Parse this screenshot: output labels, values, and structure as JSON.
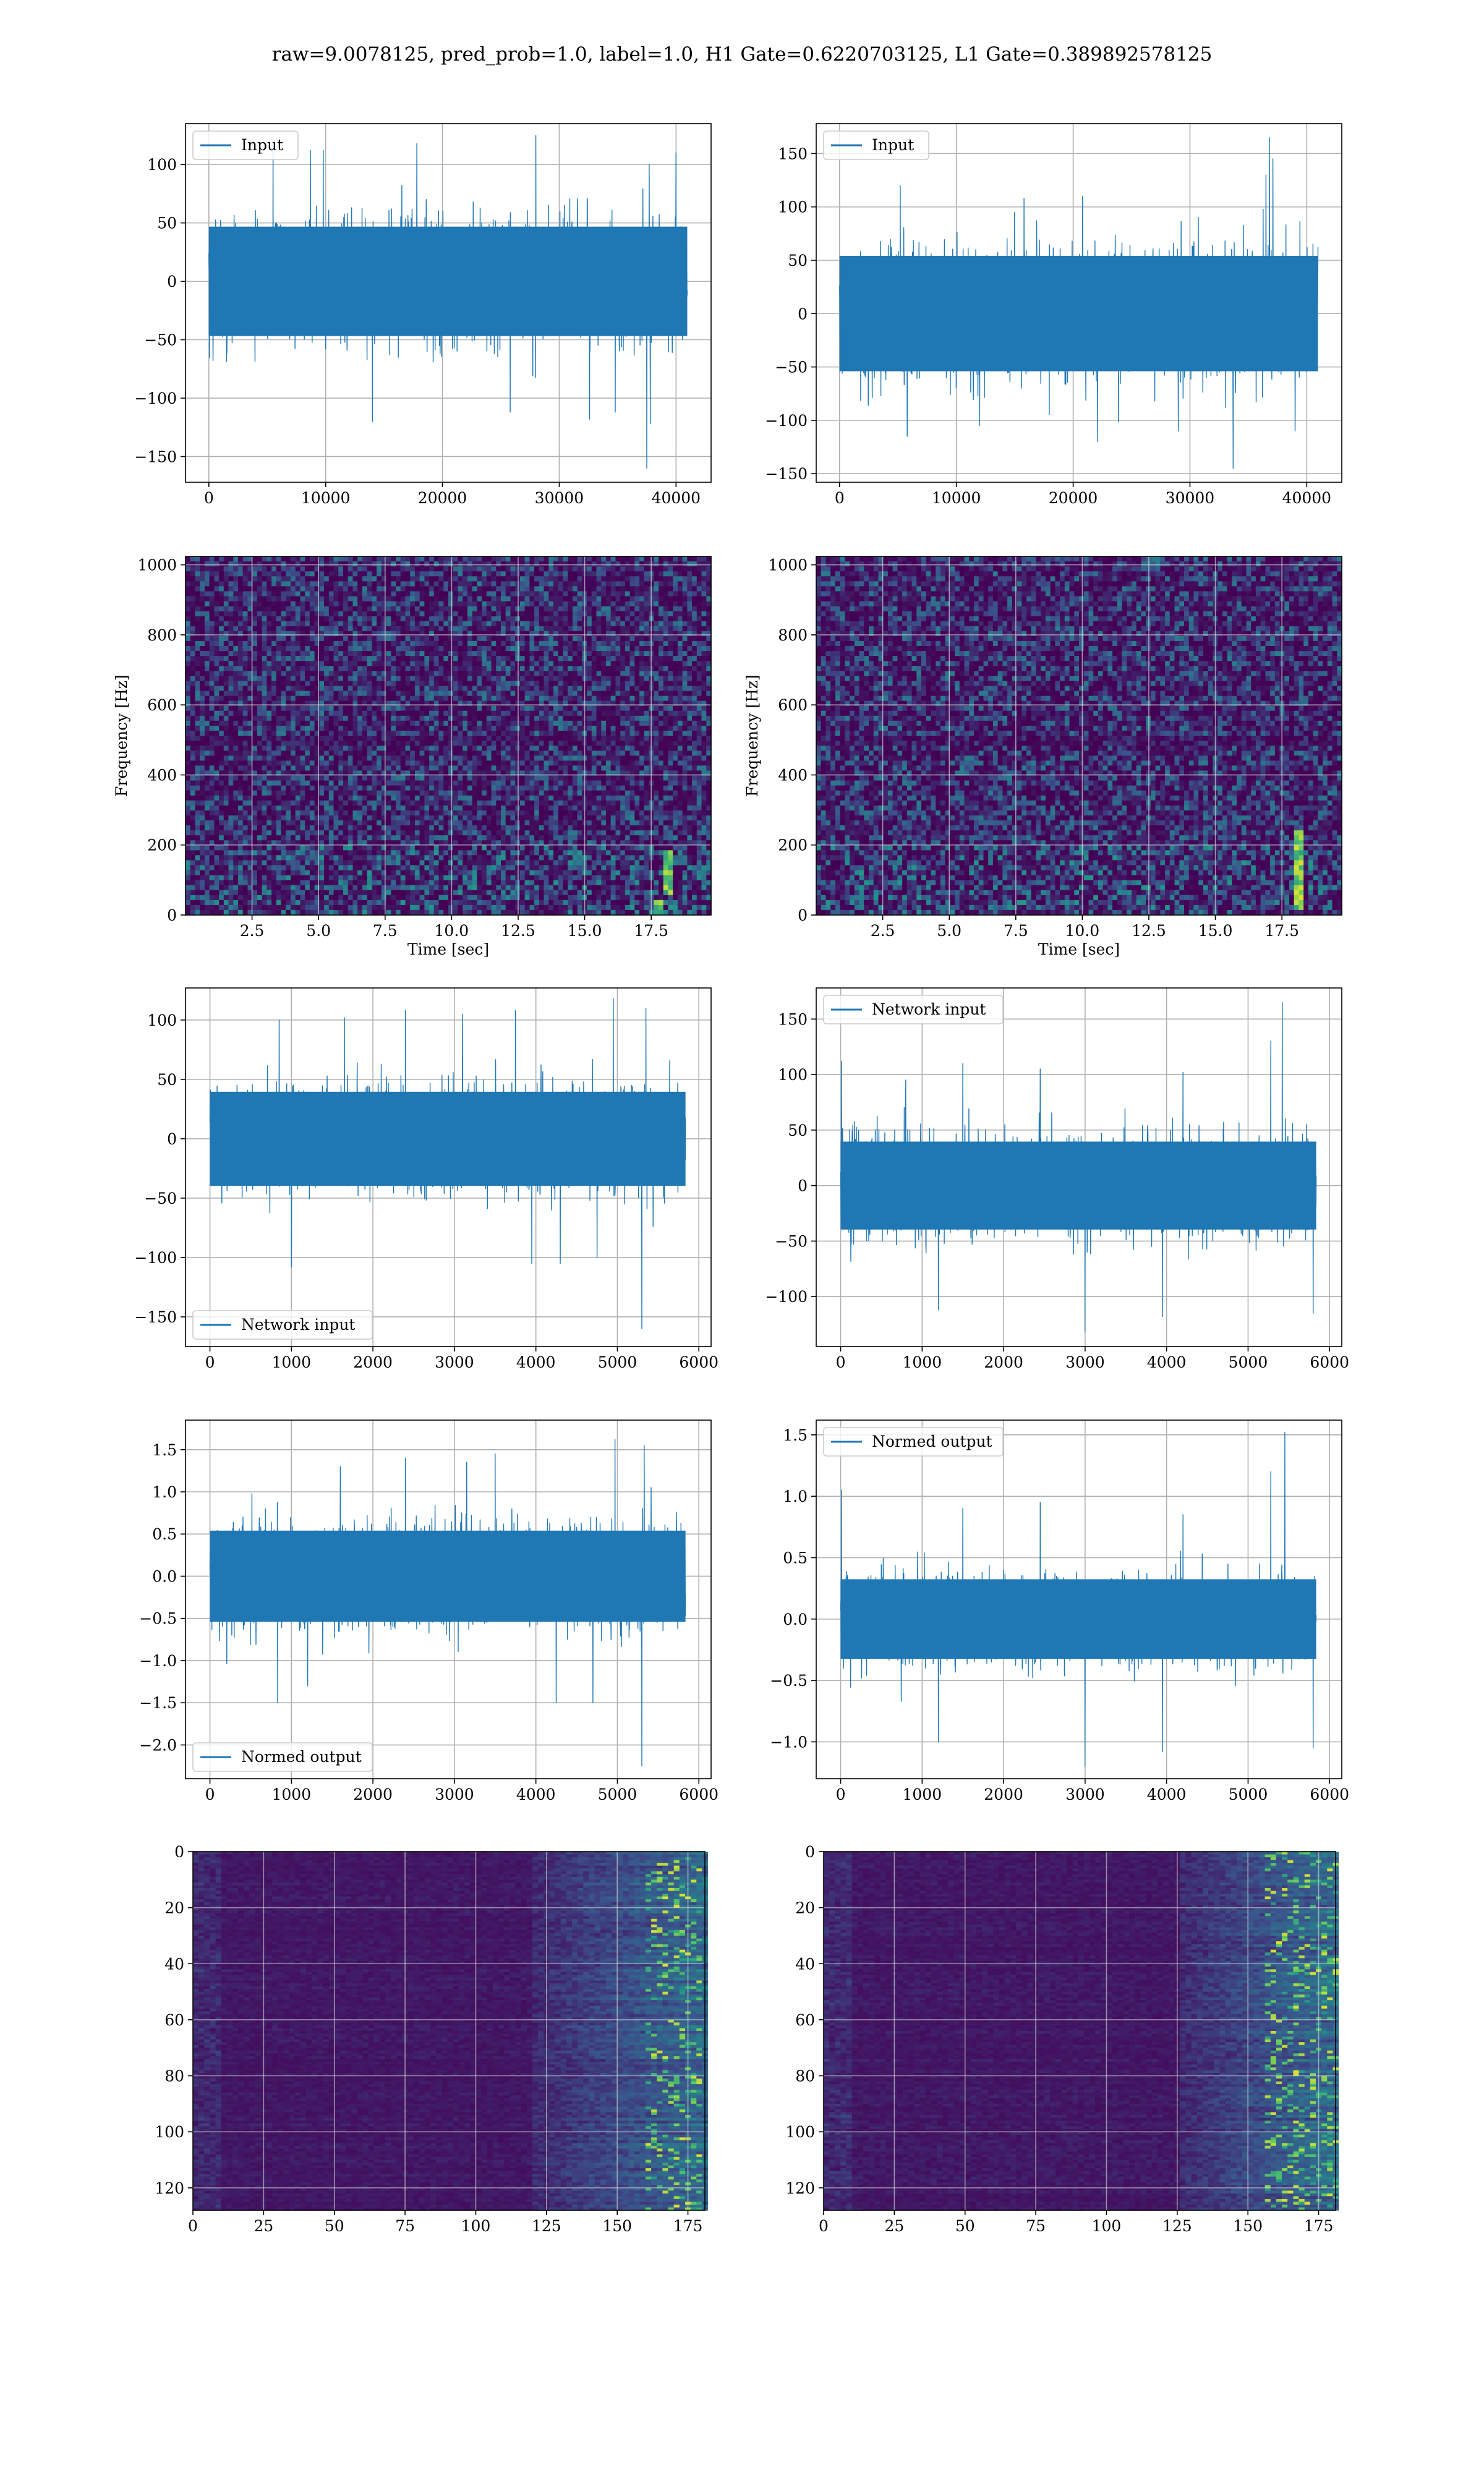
{
  "suptitle": "raw=9.0078125, pred_prob=1.0, label=1.0, H1 Gate=0.6220703125, L1 Gate=0.389892578125",
  "colors": {
    "line": "#1f77b4",
    "grid": "#b0b0b0",
    "heat_low": "#440154",
    "heat_high": "#fde725"
  },
  "chart_data": [
    {
      "id": "p1",
      "type": "line",
      "title": "",
      "xlabel": "",
      "ylabel": "",
      "xlim": [
        -2000,
        43000
      ],
      "ylim": [
        -172,
        135
      ],
      "xticks": [
        0,
        10000,
        20000,
        30000,
        40000
      ],
      "yticks": [
        -150,
        -100,
        -50,
        0,
        50,
        100
      ],
      "grid": true,
      "legend_position": "upper left",
      "series": [
        {
          "name": "Input",
          "n_points": 40960,
          "x_range": [
            0,
            40960
          ],
          "typical_range": [
            -65,
            65
          ],
          "min": -162,
          "max": 125,
          "spikes": [
            [
              28000,
              125
            ],
            [
              37800,
              -122
            ],
            [
              37700,
              100
            ],
            [
              5500,
              120
            ],
            [
              9800,
              112
            ],
            [
              14000,
              -120
            ],
            [
              17800,
              118
            ],
            [
              25800,
              -112
            ],
            [
              32600,
              -118
            ],
            [
              34800,
              -112
            ],
            [
              37500,
              -160
            ],
            [
              8700,
              112
            ],
            [
              40000,
              110
            ]
          ]
        }
      ]
    },
    {
      "id": "p2",
      "type": "line",
      "title": "",
      "xlabel": "",
      "ylabel": "",
      "xlim": [
        -2000,
        43000
      ],
      "ylim": [
        -158,
        178
      ],
      "xticks": [
        0,
        10000,
        20000,
        30000,
        40000
      ],
      "yticks": [
        -150,
        -100,
        -50,
        0,
        50,
        100,
        150
      ],
      "grid": true,
      "legend_position": "upper left",
      "series": [
        {
          "name": "Input",
          "n_points": 40960,
          "x_range": [
            0,
            40960
          ],
          "typical_range": [
            -75,
            75
          ],
          "min": -145,
          "max": 165,
          "spikes": [
            [
              36800,
              165
            ],
            [
              36500,
              130
            ],
            [
              37100,
              145
            ],
            [
              33700,
              -145
            ],
            [
              5200,
              120
            ],
            [
              20800,
              110
            ],
            [
              22100,
              -120
            ],
            [
              5800,
              -115
            ],
            [
              29000,
              -110
            ],
            [
              39000,
              -110
            ],
            [
              12000,
              -105
            ],
            [
              15800,
              108
            ]
          ]
        }
      ]
    },
    {
      "id": "p3",
      "type": "heatmap",
      "title": "",
      "xlabel": "Time [sec]",
      "ylabel": "Frequency [Hz]",
      "xlim": [
        0,
        19.75
      ],
      "ylim": [
        0,
        1024
      ],
      "xticks": [
        2.5,
        5.0,
        7.5,
        10.0,
        12.5,
        15.0,
        17.5
      ],
      "yticks": [
        0,
        200,
        400,
        600,
        800,
        1000
      ],
      "grid": true,
      "colormap": "viridis",
      "bright_features": [
        {
          "t": 18.2,
          "f_range": [
            60,
            180
          ]
        },
        {
          "t": 17.8,
          "f_range": [
            0,
            40
          ]
        }
      ]
    },
    {
      "id": "p4",
      "type": "heatmap",
      "title": "",
      "xlabel": "Time [sec]",
      "ylabel": "Frequency [Hz]",
      "xlim": [
        0,
        19.75
      ],
      "ylim": [
        0,
        1024
      ],
      "xticks": [
        2.5,
        5.0,
        7.5,
        10.0,
        12.5,
        15.0,
        17.5
      ],
      "yticks": [
        0,
        200,
        400,
        600,
        800,
        1000
      ],
      "grid": true,
      "colormap": "viridis",
      "bright_features": [
        {
          "t": 18.1,
          "f_range": [
            20,
            240
          ]
        }
      ]
    },
    {
      "id": "p5",
      "type": "line",
      "title": "",
      "xlabel": "",
      "ylabel": "",
      "xlim": [
        -300,
        6150
      ],
      "ylim": [
        -175,
        127
      ],
      "xticks": [
        0,
        1000,
        2000,
        3000,
        4000,
        5000,
        6000
      ],
      "yticks": [
        -150,
        -100,
        -50,
        0,
        50,
        100
      ],
      "grid": true,
      "legend_position": "lower left",
      "series": [
        {
          "name": "Network input",
          "n_points": 5836,
          "x_range": [
            0,
            5836
          ],
          "typical_range": [
            -55,
            55
          ],
          "min": -160,
          "max": 118,
          "spikes": [
            [
              4950,
              118
            ],
            [
              5350,
              110
            ],
            [
              5300,
              -160
            ],
            [
              1000,
              -108
            ],
            [
              3950,
              -105
            ],
            [
              4300,
              -105
            ],
            [
              4750,
              -100
            ],
            [
              1650,
              102
            ],
            [
              2400,
              108
            ],
            [
              3750,
              108
            ],
            [
              3100,
              105
            ],
            [
              850,
              100
            ]
          ]
        }
      ]
    },
    {
      "id": "p6",
      "type": "line",
      "title": "",
      "xlabel": "",
      "ylabel": "",
      "xlim": [
        -300,
        6150
      ],
      "ylim": [
        -145,
        178
      ],
      "xticks": [
        0,
        1000,
        2000,
        3000,
        4000,
        5000,
        6000
      ],
      "yticks": [
        -100,
        -50,
        0,
        50,
        100,
        150
      ],
      "grid": true,
      "legend_position": "upper left",
      "series": [
        {
          "name": "Network input",
          "n_points": 5836,
          "x_range": [
            0,
            5836
          ],
          "typical_range": [
            -55,
            55
          ],
          "min": -132,
          "max": 165,
          "spikes": [
            [
              5420,
              165
            ],
            [
              5280,
              130
            ],
            [
              3000,
              -132
            ],
            [
              3950,
              -118
            ],
            [
              10,
              112
            ],
            [
              1500,
              110
            ],
            [
              2450,
              105
            ],
            [
              4200,
              102
            ],
            [
              1200,
              -112
            ],
            [
              5800,
              -115
            ],
            [
              800,
              95
            ]
          ]
        }
      ]
    },
    {
      "id": "p7",
      "type": "line",
      "title": "",
      "xlabel": "",
      "ylabel": "",
      "xlim": [
        -300,
        6150
      ],
      "ylim": [
        -2.4,
        1.85
      ],
      "xticks": [
        0,
        1000,
        2000,
        3000,
        4000,
        5000,
        6000
      ],
      "yticks": [
        -2.0,
        -1.5,
        -1.0,
        -0.5,
        0.0,
        0.5,
        1.0,
        1.5
      ],
      "grid": true,
      "legend_position": "lower left",
      "series": [
        {
          "name": "Normed output",
          "n_points": 5836,
          "x_range": [
            0,
            5836
          ],
          "typical_range": [
            -0.75,
            0.75
          ],
          "min": -2.25,
          "max": 1.62,
          "spikes": [
            [
              4970,
              1.62
            ],
            [
              5330,
              1.55
            ],
            [
              5300,
              -2.25
            ],
            [
              830,
              -1.5
            ],
            [
              4250,
              -1.5
            ],
            [
              4700,
              -1.5
            ],
            [
              2400,
              1.4
            ],
            [
              3500,
              1.45
            ],
            [
              1600,
              1.3
            ],
            [
              3150,
              1.35
            ],
            [
              1200,
              -1.3
            ]
          ]
        }
      ]
    },
    {
      "id": "p8",
      "type": "line",
      "title": "",
      "xlabel": "",
      "ylabel": "",
      "xlim": [
        -300,
        6150
      ],
      "ylim": [
        -1.3,
        1.62
      ],
      "xticks": [
        0,
        1000,
        2000,
        3000,
        4000,
        5000,
        6000
      ],
      "yticks": [
        -1.0,
        -0.5,
        0.0,
        0.5,
        1.0,
        1.5
      ],
      "grid": true,
      "legend_position": "upper left",
      "series": [
        {
          "name": "Normed output",
          "n_points": 5836,
          "x_range": [
            0,
            5836
          ],
          "typical_range": [
            -0.45,
            0.45
          ],
          "min": -1.2,
          "max": 1.52,
          "spikes": [
            [
              5450,
              1.52
            ],
            [
              5280,
              1.2
            ],
            [
              10,
              1.05
            ],
            [
              3000,
              -1.2
            ],
            [
              3950,
              -1.08
            ],
            [
              1200,
              -1.0
            ],
            [
              5800,
              -1.05
            ],
            [
              1500,
              0.9
            ],
            [
              2450,
              0.95
            ],
            [
              4200,
              0.85
            ]
          ]
        }
      ]
    },
    {
      "id": "p9",
      "type": "heatmap",
      "title": "",
      "xlabel": "",
      "ylabel": "",
      "xlim": [
        0,
        181
      ],
      "ylim": [
        128,
        0
      ],
      "xticks": [
        0,
        25,
        50,
        75,
        100,
        125,
        150,
        175
      ],
      "yticks": [
        0,
        20,
        40,
        60,
        80,
        100,
        120
      ],
      "grid": true,
      "colormap": "viridis",
      "rows": 128,
      "cols": 181,
      "activity_onset_col": 120,
      "activity_peak_col_range": [
        160,
        178
      ]
    },
    {
      "id": "p10",
      "type": "heatmap",
      "title": "",
      "xlabel": "",
      "ylabel": "",
      "xlim": [
        0,
        181
      ],
      "ylim": [
        128,
        0
      ],
      "xticks": [
        0,
        25,
        50,
        75,
        100,
        125,
        150,
        175
      ],
      "yticks": [
        0,
        20,
        40,
        60,
        80,
        100,
        120
      ],
      "grid": true,
      "colormap": "viridis",
      "rows": 128,
      "cols": 181,
      "activity_onset_col": 125,
      "activity_peak_col_range": [
        155,
        180
      ]
    }
  ]
}
